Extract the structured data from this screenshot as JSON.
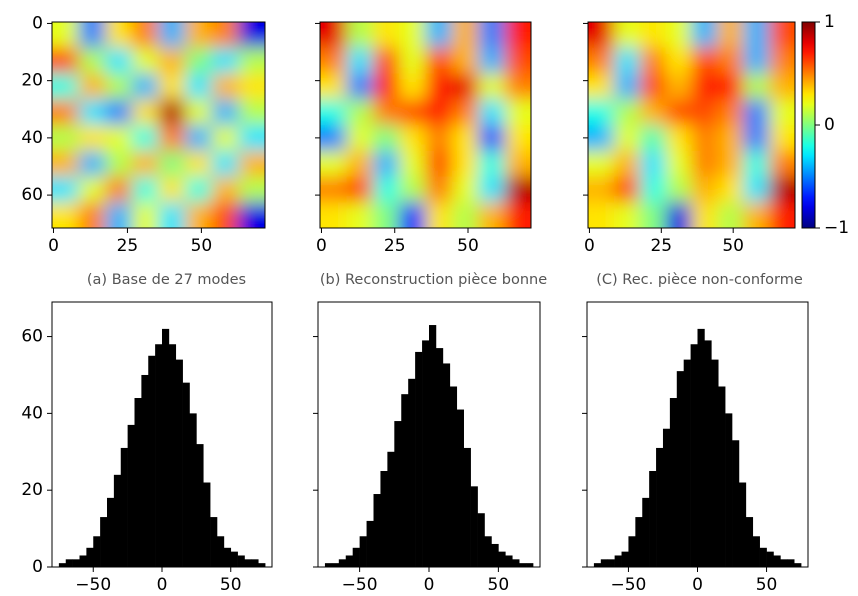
{
  "chart_data": [
    {
      "type": "heatmap",
      "caption": "(a) Base de 27 modes",
      "xlim": [
        -0.5,
        71.5
      ],
      "ylim": [
        71.5,
        -0.5
      ],
      "xticks": [
        0,
        25,
        50
      ],
      "yticks": [
        0,
        20,
        40,
        60
      ],
      "show_ytick_labels": true,
      "clim": [
        -1,
        1
      ],
      "colormap": "jet",
      "z": [
        [
          0.2,
          -0.5,
          0.3,
          0.5,
          -0.4,
          0.4,
          0.5,
          -0.8
        ],
        [
          0.6,
          0.1,
          -0.3,
          0.2,
          0.4,
          0.0,
          -0.3,
          0.1
        ],
        [
          -0.2,
          0.4,
          0.1,
          -0.4,
          0.3,
          -0.3,
          0.4,
          0.3
        ],
        [
          0.5,
          -0.3,
          -0.5,
          0.3,
          0.9,
          0.2,
          -0.4,
          0.1
        ],
        [
          0.1,
          0.3,
          0.2,
          -0.2,
          0.5,
          -0.4,
          0.2,
          -0.3
        ],
        [
          0.4,
          -0.4,
          0.1,
          0.4,
          0.0,
          0.3,
          -0.3,
          0.4
        ],
        [
          -0.3,
          0.2,
          0.5,
          -0.2,
          0.3,
          -0.2,
          0.4,
          0.1
        ],
        [
          0.3,
          0.5,
          -0.4,
          0.2,
          -0.3,
          0.4,
          0.6,
          -0.8
        ]
      ]
    },
    {
      "type": "heatmap",
      "caption": "(b) Reconstruction pièce bonne",
      "xlim": [
        -0.5,
        71.5
      ],
      "ylim": [
        71.5,
        -0.5
      ],
      "xticks": [
        0,
        25,
        50
      ],
      "yticks": [
        0,
        20,
        40,
        60
      ],
      "show_ytick_labels": false,
      "clim": [
        -1,
        1
      ],
      "colormap": "jet",
      "z": [
        [
          0.8,
          0.1,
          0.3,
          0.2,
          -0.4,
          0.4,
          -0.5,
          0.7
        ],
        [
          0.5,
          -0.3,
          0.6,
          0.2,
          0.6,
          0.4,
          -0.4,
          0.6
        ],
        [
          0.3,
          -0.5,
          0.7,
          0.3,
          0.7,
          0.8,
          0.2,
          0.5
        ],
        [
          -0.2,
          0.1,
          0.5,
          0.6,
          0.7,
          0.5,
          -0.3,
          0.2
        ],
        [
          -0.5,
          0.2,
          0.0,
          0.3,
          0.5,
          0.3,
          -0.6,
          0.3
        ],
        [
          0.2,
          0.4,
          -0.4,
          0.2,
          0.6,
          0.3,
          -0.2,
          0.4
        ],
        [
          0.5,
          0.6,
          -0.2,
          0.1,
          0.5,
          0.2,
          -0.3,
          0.9
        ],
        [
          0.3,
          0.2,
          0.0,
          -0.7,
          0.3,
          0.1,
          0.4,
          0.7
        ]
      ]
    },
    {
      "type": "heatmap",
      "caption": "(C) Rec. pièce non-conforme",
      "xlim": [
        -0.5,
        71.5
      ],
      "ylim": [
        71.5,
        -0.5
      ],
      "xticks": [
        0,
        25,
        50
      ],
      "yticks": [
        0,
        20,
        40,
        60
      ],
      "show_ytick_labels": false,
      "clim": [
        -1,
        1
      ],
      "colormap": "jet",
      "colorbar": {
        "ticks": [
          {
            "value": -1,
            "label": "−1"
          },
          0,
          1
        ]
      },
      "z": [
        [
          0.8,
          0.2,
          0.3,
          0.2,
          -0.4,
          0.4,
          -0.4,
          0.6
        ],
        [
          0.5,
          -0.3,
          0.5,
          0.3,
          0.6,
          0.5,
          -0.4,
          0.5
        ],
        [
          0.3,
          -0.4,
          0.6,
          0.4,
          0.7,
          0.7,
          0.1,
          0.4
        ],
        [
          -0.2,
          0.1,
          0.4,
          0.6,
          0.6,
          0.5,
          -0.5,
          0.2
        ],
        [
          -0.4,
          0.2,
          -0.1,
          0.3,
          0.5,
          0.4,
          -0.5,
          0.3
        ],
        [
          0.2,
          0.4,
          -0.3,
          0.2,
          0.5,
          0.4,
          -0.2,
          0.5
        ],
        [
          0.4,
          0.6,
          -0.2,
          0.1,
          0.4,
          0.3,
          -0.3,
          0.9
        ],
        [
          0.3,
          0.2,
          0.0,
          -0.8,
          0.3,
          0.1,
          0.4,
          0.7
        ]
      ]
    },
    {
      "type": "histogram",
      "color": "#000000",
      "bins": [
        -75,
        -70,
        -65,
        -60,
        -55,
        -50,
        -45,
        -40,
        -35,
        -30,
        -25,
        -20,
        -15,
        -10,
        -5,
        0,
        5,
        10,
        15,
        20,
        25,
        30,
        35,
        40,
        45,
        50,
        55,
        60,
        65,
        70,
        75
      ],
      "values": [
        1,
        2,
        2,
        3,
        5,
        8,
        13,
        18,
        24,
        31,
        37,
        44,
        50,
        55,
        58,
        62,
        58,
        54,
        48,
        40,
        32,
        22,
        13,
        8,
        5,
        4,
        3,
        2,
        2,
        1
      ],
      "xlim": [
        -80,
        80
      ],
      "ylim": [
        0,
        69
      ],
      "xticks": [
        {
          "value": -50,
          "label": "−50"
        },
        0,
        50
      ],
      "yticks": [
        0,
        20,
        40,
        60
      ],
      "show_ytick_labels": true
    },
    {
      "type": "histogram",
      "color": "#000000",
      "bins": [
        -75,
        -70,
        -65,
        -60,
        -55,
        -50,
        -45,
        -40,
        -35,
        -30,
        -25,
        -20,
        -15,
        -10,
        -5,
        0,
        5,
        10,
        15,
        20,
        25,
        30,
        35,
        40,
        45,
        50,
        55,
        60,
        65,
        70,
        75
      ],
      "values": [
        1,
        1,
        2,
        3,
        5,
        8,
        12,
        19,
        25,
        30,
        38,
        45,
        49,
        56,
        59,
        63,
        57,
        53,
        47,
        41,
        31,
        21,
        14,
        8,
        6,
        4,
        3,
        2,
        1,
        1
      ],
      "xlim": [
        -80,
        80
      ],
      "ylim": [
        0,
        69
      ],
      "xticks": [
        {
          "value": -50,
          "label": "−50"
        },
        0,
        50
      ],
      "yticks": [
        0,
        20,
        40,
        60
      ],
      "show_ytick_labels": false
    },
    {
      "type": "histogram",
      "color": "#000000",
      "bins": [
        -75,
        -70,
        -65,
        -60,
        -55,
        -50,
        -45,
        -40,
        -35,
        -30,
        -25,
        -20,
        -15,
        -10,
        -5,
        0,
        5,
        10,
        15,
        20,
        25,
        30,
        35,
        40,
        45,
        50,
        55,
        60,
        65,
        70,
        75
      ],
      "values": [
        1,
        2,
        2,
        3,
        4,
        8,
        13,
        18,
        25,
        31,
        36,
        44,
        51,
        54,
        58,
        62,
        59,
        54,
        47,
        40,
        33,
        22,
        13,
        8,
        5,
        4,
        3,
        2,
        2,
        1
      ],
      "xlim": [
        -80,
        80
      ],
      "ylim": [
        0,
        69
      ],
      "xticks": [
        {
          "value": -50,
          "label": "−50"
        },
        0,
        50
      ],
      "yticks": [
        0,
        20,
        40,
        60
      ],
      "show_ytick_labels": false
    }
  ]
}
